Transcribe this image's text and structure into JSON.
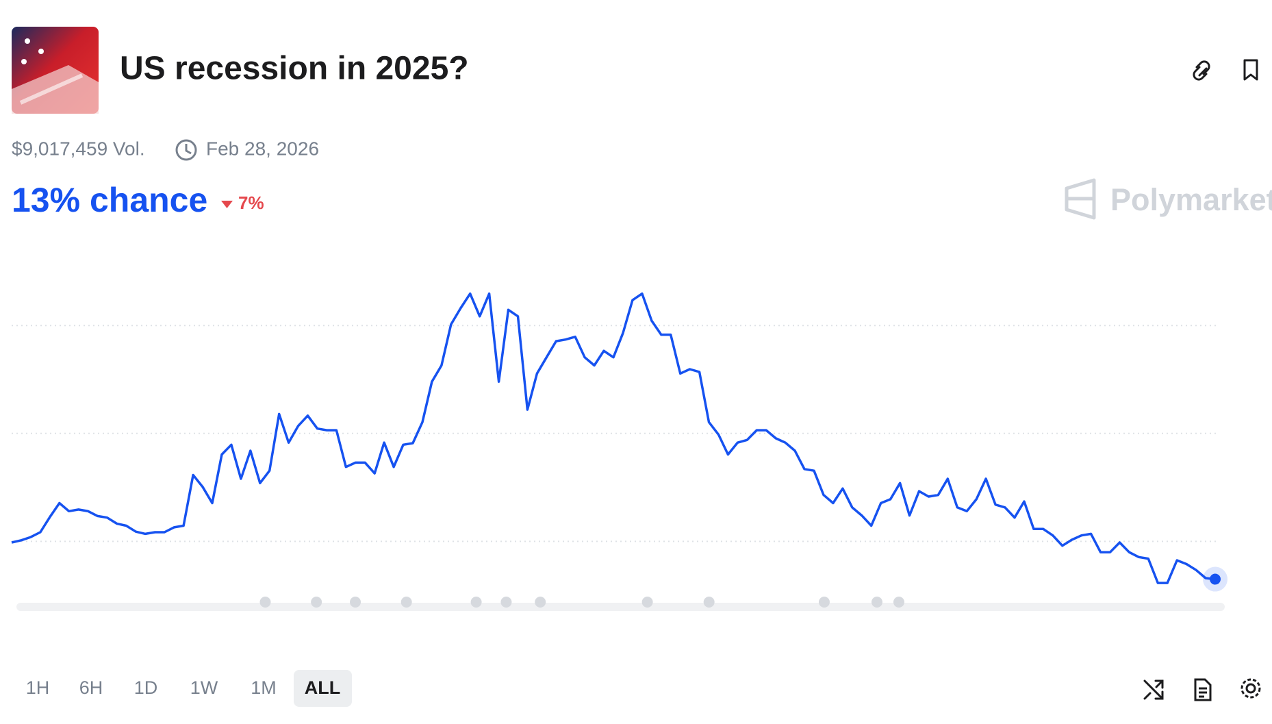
{
  "header": {
    "title": "US recession in 2025?",
    "volume": "$9,017,459 Vol.",
    "end_date": "Feb 28, 2026"
  },
  "chance": {
    "label": "13% chance",
    "change": "7%"
  },
  "brand": "Polymarket",
  "time_ranges": [
    "1H",
    "6H",
    "1D",
    "1W",
    "1M",
    "ALL"
  ],
  "selected_range": "ALL",
  "chart_data": {
    "type": "line",
    "color": "#1652f0",
    "grid": true,
    "ylim": [
      0,
      75
    ],
    "yticks": [
      20,
      40,
      60
    ],
    "values": [
      19.8,
      20.2,
      20.8,
      21.7,
      24.5,
      27.1,
      25.6,
      25.9,
      25.6,
      24.7,
      24.4,
      23.3,
      22.9,
      21.8,
      21.4,
      21.7,
      21.7,
      22.6,
      22.9,
      32.3,
      30.1,
      27.1,
      36.1,
      37.9,
      31.6,
      36.8,
      30.8,
      33.1,
      43.6,
      38.3,
      41.4,
      43.3,
      40.9,
      40.6,
      40.6,
      33.8,
      34.6,
      34.6,
      32.6,
      38.3,
      33.8,
      37.9,
      38.2,
      42.1,
      49.6,
      52.6,
      60.2,
      63.2,
      65.9,
      61.7,
      65.9,
      49.6,
      62.9,
      61.7,
      44.4,
      51.1,
      54.1,
      57.1,
      57.4,
      57.9,
      54.1,
      52.6,
      55.3,
      54.1,
      58.6,
      64.7,
      65.9,
      60.9,
      58.3,
      58.3,
      51.1,
      51.9,
      51.4,
      42.1,
      39.8,
      36.1,
      38.3,
      38.8,
      40.6,
      40.6,
      39.1,
      38.3,
      36.8,
      33.4,
      33.1,
      28.6,
      27.1,
      29.8,
      26.3,
      24.8,
      22.9,
      27.1,
      27.8,
      30.8,
      24.8,
      29.3,
      28.3,
      28.6,
      31.6,
      26.3,
      25.6,
      27.8,
      31.6,
      26.8,
      26.3,
      24.4,
      27.4,
      22.3,
      22.3,
      21.1,
      19.2,
      20.3,
      21.1,
      21.4,
      18.0,
      18.0,
      19.8,
      18.0,
      17.1,
      16.8,
      12.3,
      12.3,
      16.5,
      15.8,
      14.7,
      13.2,
      13
    ]
  }
}
